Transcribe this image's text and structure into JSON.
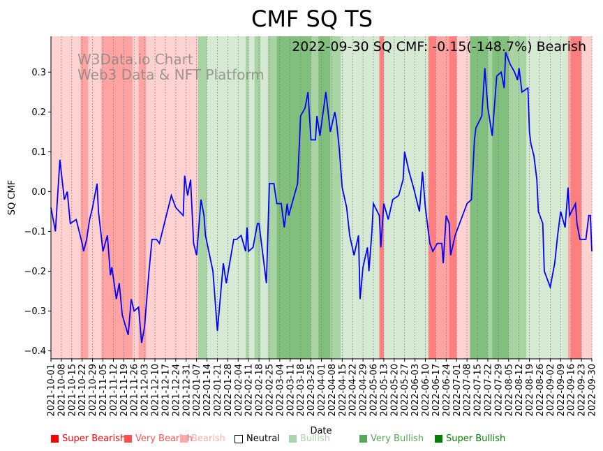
{
  "chart_data": {
    "type": "line",
    "title": "CMF SQ TS",
    "xlabel": "Date",
    "ylabel": "SQ CMF",
    "annotation": "2022-09-30 SQ CMF: -0.15(-148.7%) Bearish",
    "watermark": [
      "W3Data.io Chart",
      "Web3 Data & NFT Platform"
    ],
    "ylim": [
      -0.42,
      0.39
    ],
    "xlim_days": [
      0,
      364
    ],
    "x_start": "2021-10-01",
    "yticks": [
      0.3,
      0.2,
      0.1,
      0.0,
      -0.1,
      -0.2,
      -0.3,
      -0.4
    ],
    "ytick_labels": [
      "0.3",
      "0.2",
      "0.1",
      "0.0",
      "−0.1",
      "−0.2",
      "−0.3",
      "−0.4"
    ],
    "xtick_labels": [
      "2021-10-01",
      "2021-10-08",
      "2021-10-15",
      "2021-10-22",
      "2021-10-29",
      "2021-11-05",
      "2021-11-12",
      "2021-11-19",
      "2021-11-26",
      "2021-12-03",
      "2021-12-10",
      "2021-12-17",
      "2021-12-24",
      "2021-12-31",
      "2022-01-07",
      "2022-01-14",
      "2022-01-21",
      "2022-01-28",
      "2022-02-04",
      "2022-02-11",
      "2022-02-18",
      "2022-02-25",
      "2022-03-04",
      "2022-03-11",
      "2022-03-18",
      "2022-03-25",
      "2022-04-01",
      "2022-04-08",
      "2022-04-15",
      "2022-04-22",
      "2022-04-29",
      "2022-05-06",
      "2022-05-13",
      "2022-05-20",
      "2022-05-27",
      "2022-06-03",
      "2022-06-10",
      "2022-06-17",
      "2022-06-24",
      "2022-07-01",
      "2022-07-08",
      "2022-07-15",
      "2022-07-22",
      "2022-07-29",
      "2022-08-05",
      "2022-08-12",
      "2022-08-19",
      "2022-08-26",
      "2022-09-02",
      "2022-09-09",
      "2022-09-16",
      "2022-09-23",
      "2022-09-30"
    ],
    "series": [
      {
        "name": "SQ CMF",
        "color": "#0000ff",
        "points_day_value": [
          [
            0,
            -0.04
          ],
          [
            3,
            -0.1
          ],
          [
            6,
            0.08
          ],
          [
            9,
            -0.02
          ],
          [
            11,
            0.0
          ],
          [
            13,
            -0.08
          ],
          [
            17,
            -0.07
          ],
          [
            21,
            -0.13
          ],
          [
            22,
            -0.15
          ],
          [
            24,
            -0.12
          ],
          [
            26,
            -0.07
          ],
          [
            28,
            -0.04
          ],
          [
            31,
            0.02
          ],
          [
            32,
            -0.05
          ],
          [
            35,
            -0.15
          ],
          [
            38,
            -0.11
          ],
          [
            40,
            -0.21
          ],
          [
            41,
            -0.19
          ],
          [
            44,
            -0.27
          ],
          [
            46,
            -0.23
          ],
          [
            48,
            -0.31
          ],
          [
            52,
            -0.36
          ],
          [
            54,
            -0.27
          ],
          [
            56,
            -0.3
          ],
          [
            59,
            -0.29
          ],
          [
            61,
            -0.38
          ],
          [
            63,
            -0.34
          ],
          [
            66,
            -0.2
          ],
          [
            68,
            -0.12
          ],
          [
            71,
            -0.12
          ],
          [
            73,
            -0.13
          ],
          [
            77,
            -0.07
          ],
          [
            81,
            -0.01
          ],
          [
            84,
            -0.04
          ],
          [
            89,
            -0.06
          ],
          [
            90,
            0.04
          ],
          [
            92,
            -0.01
          ],
          [
            94,
            0.03
          ],
          [
            96,
            -0.13
          ],
          [
            98,
            -0.16
          ],
          [
            101,
            -0.02
          ],
          [
            103,
            -0.06
          ],
          [
            104,
            -0.11
          ],
          [
            109,
            -0.2
          ],
          [
            112,
            -0.35
          ],
          [
            116,
            -0.18
          ],
          [
            118,
            -0.23
          ],
          [
            123,
            -0.12
          ],
          [
            125,
            -0.12
          ],
          [
            128,
            -0.11
          ],
          [
            131,
            -0.15
          ],
          [
            132,
            -0.09
          ],
          [
            133,
            -0.15
          ],
          [
            136,
            -0.14
          ],
          [
            139,
            -0.08
          ],
          [
            140,
            -0.08
          ],
          [
            145,
            -0.23
          ],
          [
            147,
            0.02
          ],
          [
            150,
            0.02
          ],
          [
            152,
            -0.03
          ],
          [
            155,
            -0.03
          ],
          [
            157,
            -0.09
          ],
          [
            159,
            -0.03
          ],
          [
            160,
            -0.06
          ],
          [
            163,
            -0.02
          ],
          [
            166,
            0.02
          ],
          [
            168,
            0.19
          ],
          [
            171,
            0.21
          ],
          [
            173,
            0.25
          ],
          [
            175,
            0.13
          ],
          [
            178,
            0.13
          ],
          [
            179,
            0.19
          ],
          [
            181,
            0.14
          ],
          [
            185,
            0.25
          ],
          [
            188,
            0.15
          ],
          [
            191,
            0.2
          ],
          [
            192,
            0.18
          ],
          [
            194,
            0.11
          ],
          [
            196,
            0.01
          ],
          [
            199,
            -0.04
          ],
          [
            201,
            -0.11
          ],
          [
            204,
            -0.16
          ],
          [
            207,
            -0.11
          ],
          [
            208,
            -0.27
          ],
          [
            210,
            -0.19
          ],
          [
            213,
            -0.14
          ],
          [
            214,
            -0.2
          ],
          [
            216,
            -0.1
          ],
          [
            217,
            -0.03
          ],
          [
            221,
            -0.06
          ],
          [
            222,
            -0.14
          ],
          [
            224,
            -0.03
          ],
          [
            227,
            -0.07
          ],
          [
            230,
            -0.02
          ],
          [
            234,
            -0.01
          ],
          [
            237,
            0.03
          ],
          [
            238,
            0.1
          ],
          [
            241,
            0.05
          ],
          [
            244,
            0.01
          ],
          [
            248,
            -0.05
          ],
          [
            250,
            0.05
          ],
          [
            252,
            -0.04
          ],
          [
            255,
            -0.13
          ],
          [
            257,
            -0.15
          ],
          [
            260,
            -0.13
          ],
          [
            263,
            -0.13
          ],
          [
            264,
            -0.18
          ],
          [
            266,
            -0.06
          ],
          [
            268,
            -0.08
          ],
          [
            269,
            -0.16
          ],
          [
            272,
            -0.11
          ],
          [
            276,
            -0.07
          ],
          [
            277,
            -0.06
          ],
          [
            280,
            -0.03
          ],
          [
            283,
            -0.02
          ],
          [
            285,
            0.13
          ],
          [
            286,
            0.16
          ],
          [
            290,
            0.19
          ],
          [
            292,
            0.31
          ],
          [
            294,
            0.21
          ],
          [
            297,
            0.14
          ],
          [
            300,
            0.29
          ],
          [
            303,
            0.3
          ],
          [
            305,
            0.26
          ],
          [
            306,
            0.35
          ],
          [
            309,
            0.32
          ],
          [
            312,
            0.3
          ],
          [
            314,
            0.28
          ],
          [
            315,
            0.31
          ],
          [
            317,
            0.25
          ],
          [
            321,
            0.26
          ],
          [
            322,
            0.15
          ],
          [
            323,
            0.12
          ],
          [
            325,
            0.09
          ],
          [
            327,
            0.03
          ],
          [
            328,
            -0.05
          ],
          [
            331,
            -0.08
          ],
          [
            332,
            -0.2
          ],
          [
            336,
            -0.24
          ],
          [
            339,
            -0.18
          ],
          [
            341,
            -0.11
          ],
          [
            343,
            -0.05
          ],
          [
            346,
            -0.09
          ],
          [
            348,
            0.01
          ],
          [
            349,
            -0.06
          ],
          [
            353,
            -0.03
          ],
          [
            354,
            -0.08
          ],
          [
            356,
            -0.12
          ],
          [
            360,
            -0.12
          ],
          [
            362,
            -0.06
          ],
          [
            363,
            -0.06
          ],
          [
            364,
            -0.15
          ]
        ]
      }
    ],
    "background_regimes": [
      {
        "from": 0,
        "to": 20,
        "level": "Bearish"
      },
      {
        "from": 20,
        "to": 25,
        "level": "Very Bearish"
      },
      {
        "from": 25,
        "to": 34,
        "level": "Bearish"
      },
      {
        "from": 34,
        "to": 55,
        "level": "Very Bearish"
      },
      {
        "from": 55,
        "to": 59,
        "level": "Bearish"
      },
      {
        "from": 59,
        "to": 64,
        "level": "Very Bearish"
      },
      {
        "from": 64,
        "to": 99,
        "level": "Bearish"
      },
      {
        "from": 99,
        "to": 105,
        "level": "Very Bullish"
      },
      {
        "from": 105,
        "to": 131,
        "level": "Bullish"
      },
      {
        "from": 131,
        "to": 133,
        "level": "Very Bullish"
      },
      {
        "from": 133,
        "to": 137,
        "level": "Bullish"
      },
      {
        "from": 137,
        "to": 141,
        "level": "Very Bullish"
      },
      {
        "from": 141,
        "to": 146,
        "level": "Bullish"
      },
      {
        "from": 146,
        "to": 152,
        "level": "Very Bullish"
      },
      {
        "from": 152,
        "to": 175,
        "level": "Super Bullish"
      },
      {
        "from": 175,
        "to": 180,
        "level": "Very Bullish"
      },
      {
        "from": 180,
        "to": 188,
        "level": "Super Bullish"
      },
      {
        "from": 188,
        "to": 195,
        "level": "Very Bullish"
      },
      {
        "from": 195,
        "to": 221,
        "level": "Bullish"
      },
      {
        "from": 221,
        "to": 224,
        "level": "Super Bearish"
      },
      {
        "from": 224,
        "to": 254,
        "level": "Bullish"
      },
      {
        "from": 254,
        "to": 259,
        "level": "Super Bearish"
      },
      {
        "from": 259,
        "to": 262,
        "level": "Very Bearish"
      },
      {
        "from": 262,
        "to": 268,
        "level": "Very Bearish"
      },
      {
        "from": 268,
        "to": 273,
        "level": "Super Bearish"
      },
      {
        "from": 273,
        "to": 282,
        "level": "Bearish"
      },
      {
        "from": 282,
        "to": 294,
        "level": "Super Bullish"
      },
      {
        "from": 294,
        "to": 297,
        "level": "Very Bullish"
      },
      {
        "from": 297,
        "to": 308,
        "level": "Super Bullish"
      },
      {
        "from": 308,
        "to": 320,
        "level": "Very Bullish"
      },
      {
        "from": 320,
        "to": 348,
        "level": "Bullish"
      },
      {
        "from": 348,
        "to": 350,
        "level": "Very Bearish"
      },
      {
        "from": 350,
        "to": 357,
        "level": "Super Bearish"
      },
      {
        "from": 357,
        "to": 364,
        "level": "Bearish"
      }
    ],
    "regime_colors": {
      "Super Bearish": "#ff7f7f",
      "Very Bearish": "#ffa3a3",
      "Bearish": "#ffd2d2",
      "Bullish": "#d5e9d3",
      "Very Bullish": "#a8d4a4",
      "Super Bullish": "#80c07c"
    },
    "legend": [
      {
        "label": "Super Bearish",
        "color": "#ff0000",
        "text_color": "#ff0000"
      },
      {
        "label": "Very Bearish",
        "color": "#ff5050",
        "text_color": "#ff5050"
      },
      {
        "label": "Bearish",
        "color": "#ffaaaa",
        "text_color": "#ffaaaa"
      },
      {
        "label": "Neutral",
        "color": "#ffffff",
        "text_color": "#000000"
      },
      {
        "label": "Bullish",
        "color": "#aad5aa",
        "text_color": "#aad5aa"
      },
      {
        "label": "Very Bullish",
        "color": "#55aa55",
        "text_color": "#55aa55"
      },
      {
        "label": "Super Bullish",
        "color": "#008000",
        "text_color": "#008000"
      }
    ],
    "legend_placement": "bottom",
    "grid": "vertical dotted"
  }
}
